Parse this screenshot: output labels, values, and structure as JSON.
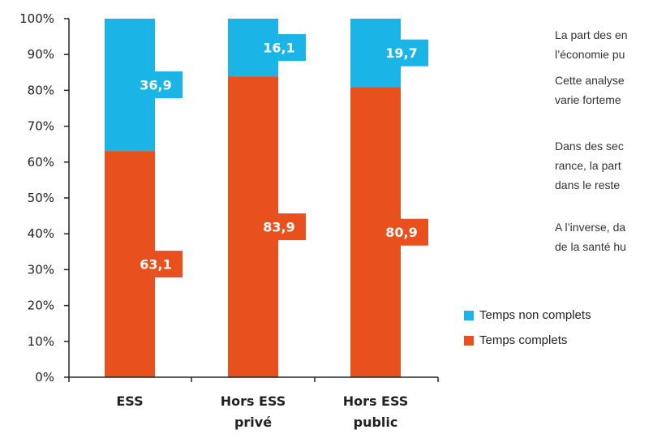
{
  "chart_data": {
    "type": "bar",
    "stacked": true,
    "categories": [
      [
        "ESS"
      ],
      [
        "Hors ESS",
        "privé"
      ],
      [
        "Hors ESS",
        "public"
      ]
    ],
    "series": [
      {
        "name": "Temps complets",
        "values": [
          63.1,
          83.9,
          80.9
        ],
        "labels": [
          "63,1",
          "83,9",
          "80,9"
        ],
        "color": "#E8501E"
      },
      {
        "name": "Temps non complets",
        "values": [
          36.9,
          16.1,
          19.7
        ],
        "labels": [
          "36,9",
          "16,1",
          "19,7"
        ],
        "color": "#1AB5E6"
      }
    ],
    "ylim": [
      0,
      100
    ],
    "yticks": [
      "0%",
      "10%",
      "20%",
      "30%",
      "40%",
      "50%",
      "60%",
      "70%",
      "80%",
      "90%",
      "100%"
    ],
    "grid": false,
    "legend": "right"
  },
  "side_text": [
    [
      "La part des en",
      "l’économie pu"
    ],
    [
      "Cette analyse",
      "varie forteme"
    ],
    [
      "Dans des sec",
      "rance, la part",
      "dans le reste"
    ],
    [
      "A l’inverse, da",
      "de la santé hu"
    ]
  ],
  "legend": [
    {
      "label": "Temps non complets",
      "color": "#1AB5E6"
    },
    {
      "label": "Temps complets",
      "color": "#E8501E"
    }
  ]
}
